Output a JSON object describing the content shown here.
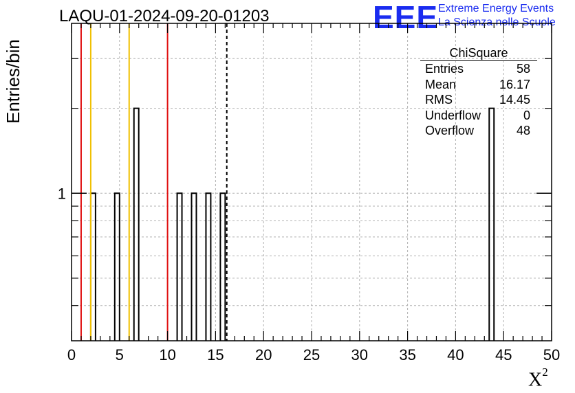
{
  "header": {
    "title": "LAQU-01-2024-09-20-01203",
    "logo_text": "EEE",
    "logo_line1": "Extreme Energy Events",
    "logo_line2": "La Scienza nelle Scuole",
    "logo_color": "#1a2cf0"
  },
  "stats": {
    "title": "ChiSquare",
    "rows": [
      {
        "label": "Entries",
        "value": "58"
      },
      {
        "label": "Mean",
        "value": "16.17"
      },
      {
        "label": "RMS",
        "value": "14.45"
      },
      {
        "label": "Underflow",
        "value": "0"
      },
      {
        "label": "Overflow",
        "value": "48"
      }
    ]
  },
  "chart_data": {
    "type": "bar",
    "title": "LAQU-01-2024-09-20-01203",
    "xlabel": "X",
    "xlabel_superscript": "2",
    "ylabel": "Entries/bin",
    "xlim": [
      0,
      50
    ],
    "x_ticks": [
      "0",
      "5",
      "10",
      "15",
      "20",
      "25",
      "30",
      "35",
      "40",
      "45",
      "50"
    ],
    "y_scale": "log",
    "ylim": [
      0.3,
      4
    ],
    "y_tick_labels": [
      "1"
    ],
    "grid": true,
    "bin_width": 0.5,
    "bins": [
      {
        "x": 2.0,
        "value": 1
      },
      {
        "x": 4.5,
        "value": 1
      },
      {
        "x": 6.5,
        "value": 2
      },
      {
        "x": 11.0,
        "value": 1
      },
      {
        "x": 12.5,
        "value": 1
      },
      {
        "x": 14.0,
        "value": 1
      },
      {
        "x": 15.5,
        "value": 1
      },
      {
        "x": 43.5,
        "value": 2
      }
    ],
    "vertical_lines": [
      {
        "x": 1.0,
        "color": "#e01010",
        "style": "solid"
      },
      {
        "x": 2.0,
        "color": "#f0c000",
        "style": "solid"
      },
      {
        "x": 6.0,
        "color": "#f0c000",
        "style": "solid"
      },
      {
        "x": 10.0,
        "color": "#e01010",
        "style": "solid"
      },
      {
        "x": 16.17,
        "color": "#000000",
        "style": "dashed"
      }
    ]
  }
}
